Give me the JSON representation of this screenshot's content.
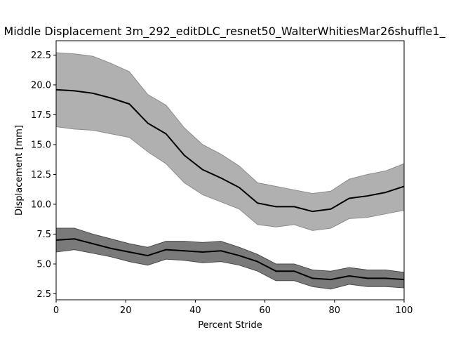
{
  "chart_data": {
    "type": "area",
    "title": "Middle Displacement 3m_292_editDLC_resnet50_WalterWhitiesMar26shuffle1_",
    "xlabel": "Percent Stride",
    "ylabel": "Displacement [mm]",
    "xlim": [
      0,
      100
    ],
    "ylim": [
      2.0,
      23.7
    ],
    "xticks": [
      0,
      20,
      40,
      60,
      80,
      100
    ],
    "xtick_labels": [
      "0",
      "20",
      "40",
      "60",
      "80",
      "100"
    ],
    "yticks": [
      2.5,
      5.0,
      7.5,
      10.0,
      12.5,
      15.0,
      17.5,
      20.0,
      22.5
    ],
    "ytick_labels": [
      "2.5",
      "5.0",
      "7.5",
      "10.0",
      "12.5",
      "15.0",
      "17.5",
      "20.0",
      "22.5"
    ],
    "grid": false,
    "x": [
      0,
      5.26,
      10.53,
      15.79,
      21.05,
      26.32,
      31.58,
      36.84,
      42.11,
      47.37,
      52.63,
      57.89,
      63.16,
      68.42,
      73.68,
      78.95,
      84.21,
      89.47,
      94.74,
      100
    ],
    "series": [
      {
        "mean": [
          19.6,
          19.5,
          19.3,
          18.9,
          18.4,
          16.8,
          15.9,
          14.1,
          12.9,
          12.2,
          11.4,
          10.1,
          9.8,
          9.8,
          9.4,
          9.6,
          10.5,
          10.7,
          11.0,
          11.5
        ],
        "upper": [
          22.7,
          22.6,
          22.4,
          21.8,
          21.1,
          19.2,
          18.3,
          16.4,
          15.0,
          14.2,
          13.2,
          11.8,
          11.5,
          11.2,
          10.9,
          11.1,
          12.1,
          12.5,
          12.8,
          13.4
        ],
        "lower": [
          16.5,
          16.3,
          16.2,
          15.9,
          15.6,
          14.4,
          13.4,
          11.8,
          10.8,
          10.2,
          9.6,
          8.3,
          8.1,
          8.3,
          7.8,
          8.0,
          8.8,
          8.9,
          9.2,
          9.5
        ],
        "line_color": "#000000",
        "fill_color": "#b0b0b0",
        "edge_color": "#8c8c8c"
      },
      {
        "mean": [
          7.0,
          7.1,
          6.7,
          6.3,
          6.0,
          5.7,
          6.2,
          6.1,
          6.0,
          6.1,
          5.7,
          5.2,
          4.4,
          4.4,
          3.8,
          3.7,
          4.0,
          3.8,
          3.8,
          3.7
        ],
        "upper": [
          8.0,
          8.0,
          7.5,
          7.1,
          6.7,
          6.4,
          6.9,
          6.9,
          6.8,
          6.9,
          6.4,
          5.8,
          5.0,
          5.0,
          4.5,
          4.4,
          4.7,
          4.5,
          4.5,
          4.3
        ],
        "lower": [
          6.0,
          6.2,
          5.9,
          5.6,
          5.2,
          4.9,
          5.4,
          5.3,
          5.1,
          5.2,
          4.9,
          4.4,
          3.6,
          3.6,
          3.1,
          2.9,
          3.3,
          3.1,
          3.1,
          3.0
        ],
        "line_color": "#000000",
        "fill_color": "#7a7a7a",
        "edge_color": "#4a4a4a"
      }
    ]
  }
}
